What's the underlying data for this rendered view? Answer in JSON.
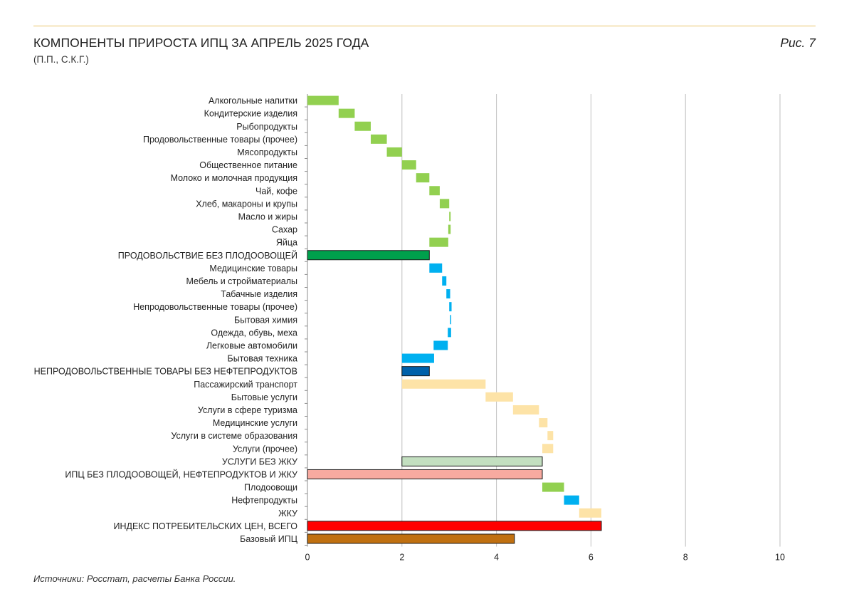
{
  "header": {
    "title": "КОМПОНЕНТЫ ПРИРОСТА ИПЦ ЗА АПРЕЛЬ 2025 ГОДА",
    "subtitle": "(П.П., С.К.Г.)",
    "figure": "Рис. 7"
  },
  "footer": {
    "source": "Источники: Росстат, расчеты Банка России."
  },
  "colors": {
    "food": "#92d050",
    "nonfood": "#00b0f0",
    "services": "#fde3a7",
    "food_core": "#00a04c",
    "nonfood_core": "#0061aa",
    "services_core": "#c3dfc0",
    "core_all": "#f8aaa0",
    "cpi_total": "#ff0000",
    "base_cpi": "#c07010",
    "grid": "#bfbfbf"
  },
  "chart_data": {
    "type": "bar",
    "subtype": "waterfall-horizontal",
    "title": "КОМПОНЕНТЫ ПРИРОСТА ИПЦ ЗА АПРЕЛЬ 2025 ГОДА",
    "subtitle": "(П.П., С.К.Г.)",
    "xlabel": "",
    "ylabel": "",
    "xlim": [
      0,
      10
    ],
    "xticks": [
      0,
      2,
      4,
      6,
      8,
      10
    ],
    "grid": true,
    "legend": "none",
    "bars": [
      {
        "label": "Алкогольные напитки",
        "start": 0.0,
        "end": 0.66,
        "group": "food",
        "outlined": false
      },
      {
        "label": "Кондитерские изделия",
        "start": 0.66,
        "end": 1.0,
        "group": "food",
        "outlined": false
      },
      {
        "label": "Рыбопродукты",
        "start": 1.0,
        "end": 1.34,
        "group": "food",
        "outlined": false
      },
      {
        "label": "Продовольственные товары (прочее)",
        "start": 1.34,
        "end": 1.68,
        "group": "food",
        "outlined": false
      },
      {
        "label": "Мясопродукты",
        "start": 1.68,
        "end": 2.0,
        "group": "food",
        "outlined": false
      },
      {
        "label": "Общественное питание",
        "start": 2.0,
        "end": 2.3,
        "group": "food",
        "outlined": false
      },
      {
        "label": "Молоко и молочная продукция",
        "start": 2.3,
        "end": 2.58,
        "group": "food",
        "outlined": false
      },
      {
        "label": "Чай, кофе",
        "start": 2.58,
        "end": 2.8,
        "group": "food",
        "outlined": false
      },
      {
        "label": "Хлеб, макароны и крупы",
        "start": 2.8,
        "end": 3.0,
        "group": "food",
        "outlined": false
      },
      {
        "label": "Масло и жиры",
        "start": 3.0,
        "end": 3.03,
        "group": "food",
        "outlined": false
      },
      {
        "label": "Сахар",
        "start": 2.98,
        "end": 3.03,
        "group": "food",
        "outlined": false
      },
      {
        "label": "Яйца",
        "start": 2.58,
        "end": 2.98,
        "group": "food",
        "outlined": false
      },
      {
        "label": "ПРОДОВОЛЬСТВИЕ БЕЗ ПЛОДООВОЩЕЙ",
        "start": 0.0,
        "end": 2.58,
        "group": "food_core",
        "outlined": true
      },
      {
        "label": "Медицинские товары",
        "start": 2.58,
        "end": 2.85,
        "group": "nonfood",
        "outlined": false
      },
      {
        "label": "Мебель и стройматериалы",
        "start": 2.85,
        "end": 2.94,
        "group": "nonfood",
        "outlined": false
      },
      {
        "label": "Табачные изделия",
        "start": 2.94,
        "end": 3.02,
        "group": "nonfood",
        "outlined": false
      },
      {
        "label": "Непродовольственные товары (прочее)",
        "start": 3.0,
        "end": 3.05,
        "group": "nonfood",
        "outlined": false
      },
      {
        "label": "Бытовая химия",
        "start": 3.02,
        "end": 3.04,
        "group": "nonfood",
        "outlined": false
      },
      {
        "label": "Одежда, обувь, меха",
        "start": 2.97,
        "end": 3.04,
        "group": "nonfood",
        "outlined": false
      },
      {
        "label": "Легковые автомобили",
        "start": 2.67,
        "end": 2.97,
        "group": "nonfood",
        "outlined": false
      },
      {
        "label": "Бытовая техника",
        "start": 2.0,
        "end": 2.68,
        "group": "nonfood",
        "outlined": false
      },
      {
        "label": "НЕПРОДОВОЛЬСТВЕННЫЕ ТОВАРЫ БЕЗ НЕФТЕПРОДУКТОВ",
        "start": 2.0,
        "end": 2.58,
        "group": "nonfood_core",
        "outlined": true
      },
      {
        "label": "Пассажирский транспорт",
        "start": 2.0,
        "end": 3.77,
        "group": "services",
        "outlined": false
      },
      {
        "label": "Бытовые услуги",
        "start": 3.77,
        "end": 4.35,
        "group": "services",
        "outlined": false
      },
      {
        "label": "Услуги в сфере туризма",
        "start": 4.35,
        "end": 4.9,
        "group": "services",
        "outlined": false
      },
      {
        "label": "Медицинские услуги",
        "start": 4.9,
        "end": 5.08,
        "group": "services",
        "outlined": false
      },
      {
        "label": "Услуги в системе образования",
        "start": 5.08,
        "end": 5.2,
        "group": "services",
        "outlined": false
      },
      {
        "label": "Услуги (прочее)",
        "start": 4.97,
        "end": 5.2,
        "group": "services",
        "outlined": false
      },
      {
        "label": "УСЛУГИ БЕЗ ЖКУ",
        "start": 2.0,
        "end": 4.97,
        "group": "services_core",
        "outlined": true
      },
      {
        "label": "ИПЦ БЕЗ ПЛОДООВОЩЕЙ, НЕФТЕПРОДУКТОВ И ЖКУ",
        "start": 0.0,
        "end": 4.97,
        "group": "core_all",
        "outlined": true
      },
      {
        "label": "Плодоовощи",
        "start": 4.97,
        "end": 5.43,
        "group": "food",
        "outlined": false
      },
      {
        "label": "Нефтепродукты",
        "start": 5.43,
        "end": 5.75,
        "group": "nonfood",
        "outlined": false
      },
      {
        "label": "ЖКУ",
        "start": 5.75,
        "end": 6.22,
        "group": "services",
        "outlined": false
      },
      {
        "label": "ИНДЕКС ПОТРЕБИТЕЛЬСКИХ ЦЕН, ВСЕГО",
        "start": 0.0,
        "end": 6.22,
        "group": "cpi_total",
        "outlined": true
      },
      {
        "label": "Базовый ИПЦ",
        "start": 0.0,
        "end": 4.38,
        "group": "base_cpi",
        "outlined": true
      }
    ]
  }
}
